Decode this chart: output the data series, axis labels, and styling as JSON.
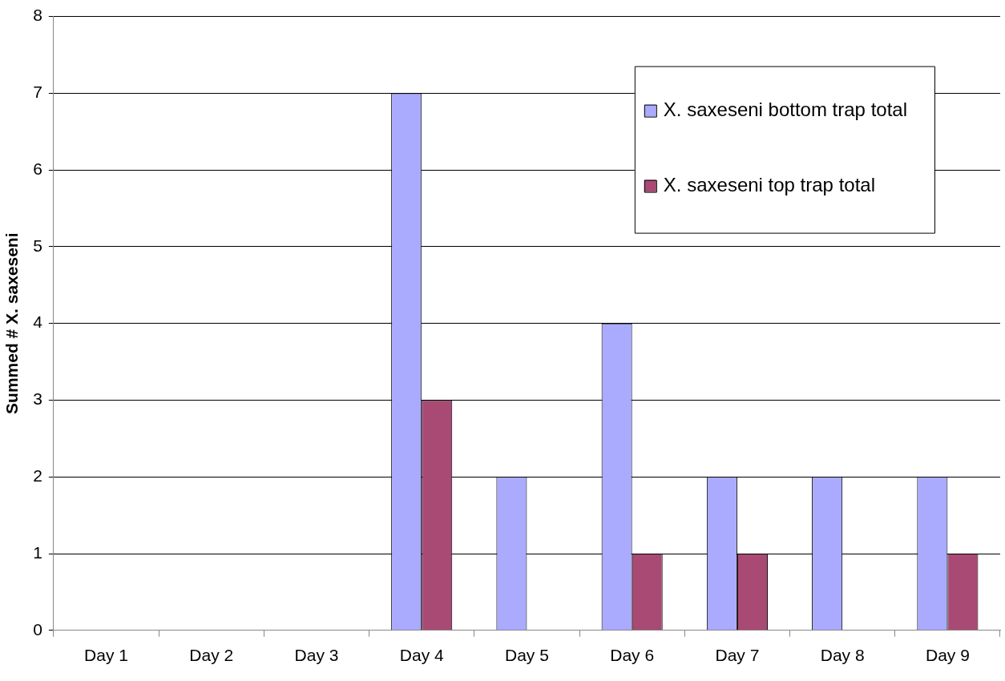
{
  "chart_data": {
    "type": "bar",
    "ylabel": "Summed # X. saxeseni",
    "categories": [
      "Day 1",
      "Day 2",
      "Day 3",
      "Day 4",
      "Day 5",
      "Day 6",
      "Day 7",
      "Day 8",
      "Day 9"
    ],
    "series": [
      {
        "name": "X. saxeseni bottom trap total",
        "color": "#aaaaff",
        "values": [
          0,
          0,
          0,
          7,
          2,
          4,
          2,
          2,
          2
        ]
      },
      {
        "name": "X. saxeseni top trap total",
        "color": "#a84a73",
        "values": [
          0,
          0,
          0,
          3,
          0,
          1,
          1,
          0,
          1
        ]
      }
    ],
    "ylim": [
      0,
      8
    ],
    "yticks": [
      0,
      1,
      2,
      3,
      4,
      5,
      6,
      7,
      8
    ],
    "grid": "y",
    "legend": "top right"
  }
}
